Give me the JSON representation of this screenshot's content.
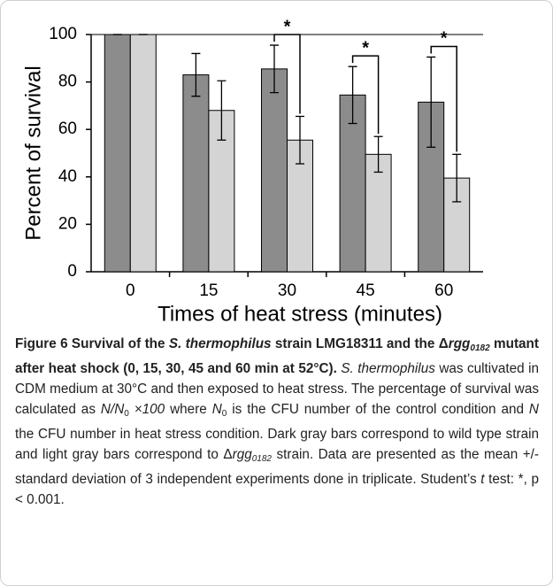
{
  "chart_data": {
    "type": "bar",
    "y_title": "Percent of survival",
    "x_title": "Times of heat stress (minutes)",
    "categories": [
      "0",
      "15",
      "30",
      "45",
      "60"
    ],
    "series": [
      {
        "color": "#8c8c8c",
        "values": [
          100,
          83,
          85.5,
          74.5,
          71.5
        ],
        "errors": [
          0,
          9,
          10,
          12,
          19
        ]
      },
      {
        "color": "#d4d4d4",
        "values": [
          100,
          68,
          55.5,
          49.5,
          39.5
        ],
        "errors": [
          0,
          12.5,
          10,
          7.5,
          10
        ]
      }
    ],
    "ylim": [
      0,
      100
    ],
    "yticks": [
      0,
      20,
      40,
      60,
      80,
      100
    ],
    "annotations": [
      {
        "text": "*",
        "category": "30"
      },
      {
        "text": "*",
        "category": "45"
      },
      {
        "text": "*",
        "category": "60"
      }
    ]
  },
  "caption": {
    "runs": [
      {
        "text": "Figure 6 Survival of the ",
        "style": "bold"
      },
      {
        "text": "S. thermophilus",
        "style": "bold italic"
      },
      {
        "text": " strain LMG18311 and the Δ",
        "style": "bold"
      },
      {
        "text": "rgg",
        "style": "bold italic"
      },
      {
        "text": "0182",
        "style": "bold italic sub"
      },
      {
        "text": " mutant after heat shock (0, 15, 30, 45 and 60 min at 52°C). ",
        "style": "bold"
      },
      {
        "text": "S. thermophilus",
        "style": "italic"
      },
      {
        "text": " was cultivated in CDM medium at 30°C and then exposed to heat stress. The percentage of survival was calculated as "
      },
      {
        "text": "N/N",
        "style": "italic"
      },
      {
        "text": "0",
        "style": "sub"
      },
      {
        "text": " ×100",
        "style": "italic"
      },
      {
        "text": " where "
      },
      {
        "text": "N",
        "style": "italic"
      },
      {
        "text": "0",
        "style": "sub"
      },
      {
        "text": " is the CFU number of the control condition and "
      },
      {
        "text": "N",
        "style": "italic"
      },
      {
        "text": " the CFU number in heat stress condition. Dark gray bars correspond to wild type strain and light gray bars correspond to Δ"
      },
      {
        "text": "rgg",
        "style": "italic"
      },
      {
        "text": "0182",
        "style": "italic sub"
      },
      {
        "text": " strain. Data are presented as the mean +/- standard deviation of 3 independent experiments done in triplicate. Student’s "
      },
      {
        "text": "t",
        "style": "italic"
      },
      {
        "text": " test: *, p < 0.001."
      }
    ]
  }
}
